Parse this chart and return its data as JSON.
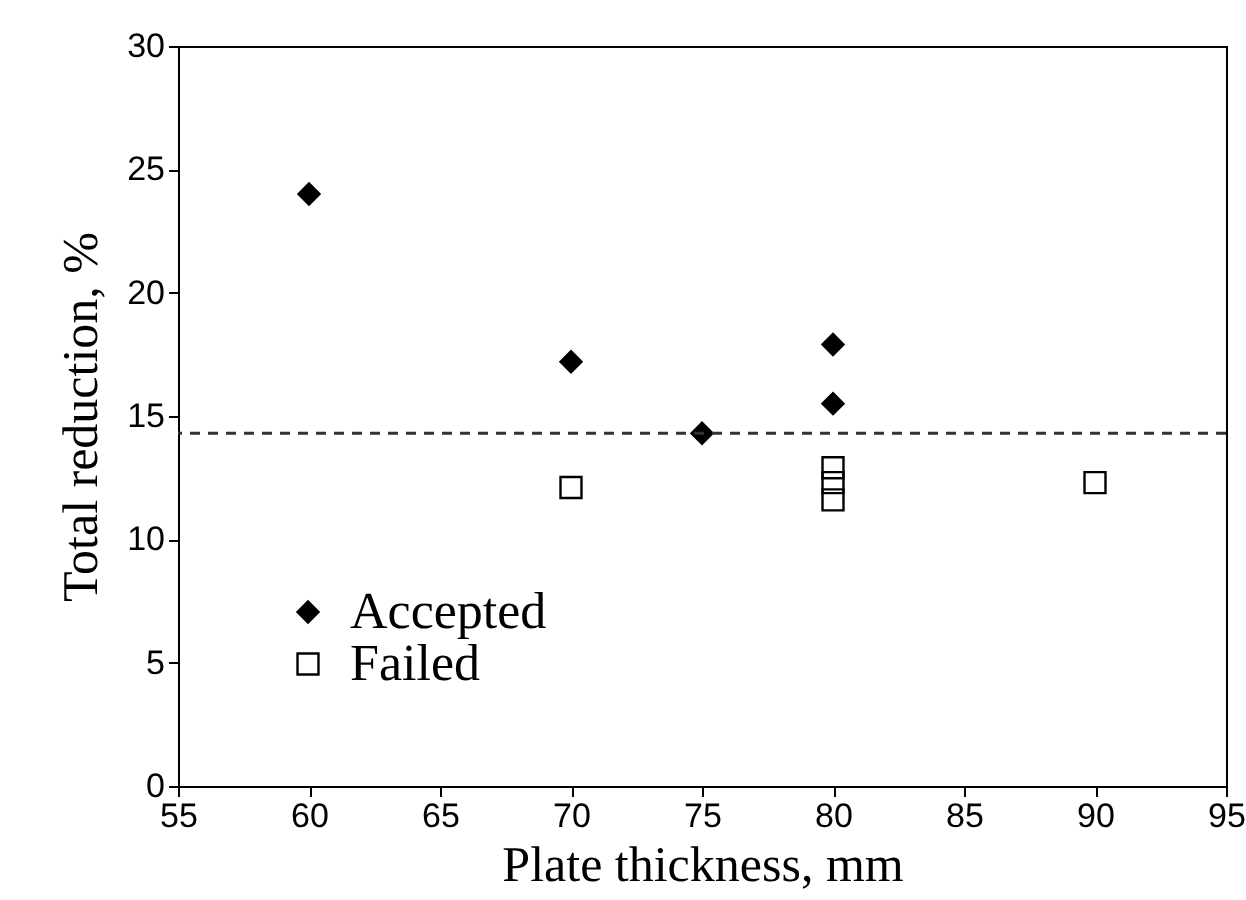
{
  "chart_data": {
    "type": "scatter",
    "xlabel": "Plate thickness, mm",
    "ylabel": "Total reduction, %",
    "xlim": [
      55,
      95
    ],
    "xticks": [
      55,
      60,
      65,
      70,
      75,
      80,
      85,
      90,
      95
    ],
    "ylim": [
      0,
      30
    ],
    "yticks": [
      0,
      5,
      10,
      15,
      20,
      25,
      30
    ],
    "grid": false,
    "legend": "bottom left",
    "series": [
      {
        "name": "Accepted",
        "color": "#000000",
        "marker": "diamond",
        "x": [
          60,
          70,
          75,
          80,
          80
        ],
        "values": [
          24,
          17.2,
          14.3,
          17.9,
          15.5
        ]
      },
      {
        "name": "Failed",
        "color": "#000000",
        "marker": "square",
        "x": [
          70,
          80,
          80,
          80,
          90
        ],
        "values": [
          12.1,
          12.9,
          12.3,
          11.6,
          12.3
        ]
      }
    ],
    "ref_lines": [
      {
        "axis": "y",
        "value": 14.3,
        "line_style": "dashed",
        "color": "#333333"
      }
    ]
  }
}
